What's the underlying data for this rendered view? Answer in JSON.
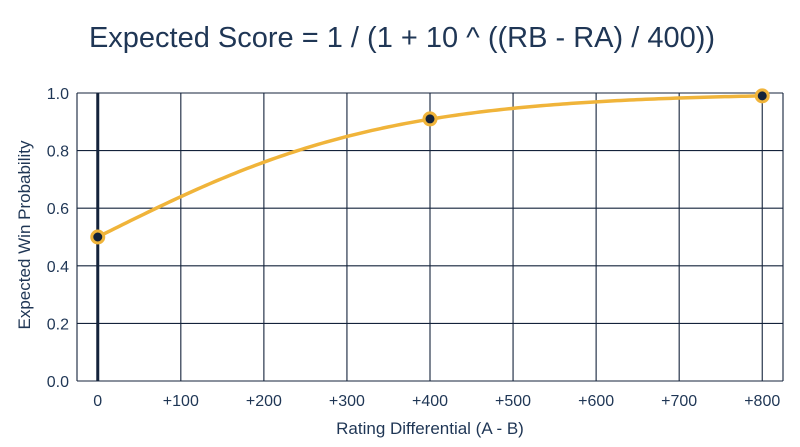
{
  "chart_data": {
    "type": "line",
    "title": "Expected Score = 1 / (1 + 10 ^ ((RB - RA) / 400))",
    "xlabel": "Rating Differential (A - B)",
    "ylabel": "Expected Win Probability",
    "xlim": [
      -25,
      825
    ],
    "ylim": [
      0,
      1.0
    ],
    "xticks": [
      0,
      100,
      200,
      300,
      400,
      500,
      600,
      700,
      800
    ],
    "xtick_labels": [
      "0",
      "+100",
      "+200",
      "+300",
      "+400",
      "+500",
      "+600",
      "+700",
      "+800"
    ],
    "yticks": [
      0.0,
      0.2,
      0.4,
      0.6,
      0.8,
      1.0
    ],
    "ytick_labels": [
      "0.0",
      "0.2",
      "0.4",
      "0.6",
      "0.8",
      "1.0"
    ],
    "grid": true,
    "series": [
      {
        "curve": "1 / (1 + 10^(-x/400))",
        "x": [
          0,
          400,
          800
        ],
        "y": [
          0.5,
          0.91,
          0.99
        ]
      }
    ],
    "colors": {
      "line": "#f0b43a",
      "marker_fill": "#14233b",
      "grid": "#14233b",
      "text": "#1f3655",
      "zero_line": "#14233b"
    }
  }
}
